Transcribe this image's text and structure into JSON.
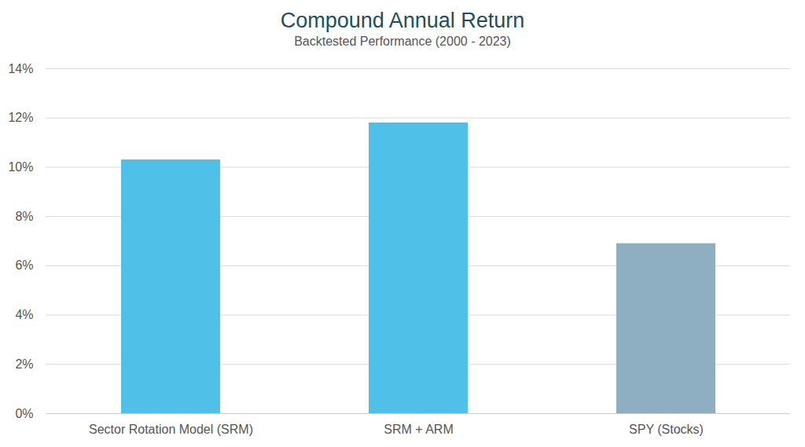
{
  "chart_data": {
    "type": "bar",
    "title": "Compound Annual Return",
    "subtitle": "Backtested Performance (2000 - 2023)",
    "categories": [
      "Sector Rotation Model (SRM)",
      "SRM + ARM",
      "SPY (Stocks)"
    ],
    "values": [
      10.3,
      11.8,
      6.9
    ],
    "colors": [
      "#4fc1e8",
      "#4fc1e8",
      "#8eafc2"
    ],
    "ylim": [
      0,
      14
    ],
    "yticks": [
      {
        "value": 0,
        "label": "0%"
      },
      {
        "value": 2,
        "label": "2%"
      },
      {
        "value": 4,
        "label": "4%"
      },
      {
        "value": 6,
        "label": "6%"
      },
      {
        "value": 8,
        "label": "8%"
      },
      {
        "value": 10,
        "label": "10%"
      },
      {
        "value": 12,
        "label": "12%"
      },
      {
        "value": 14,
        "label": "14%"
      }
    ],
    "grid": true
  }
}
